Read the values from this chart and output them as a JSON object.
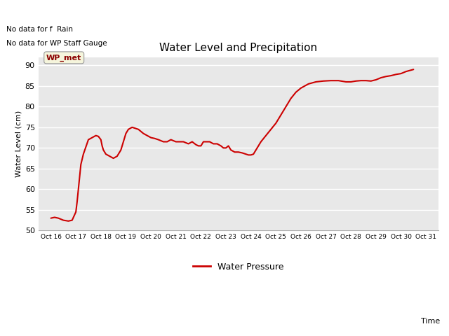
{
  "title": "Water Level and Precipitation",
  "xlabel": "Time",
  "ylabel": "Water Level (cm)",
  "ylim": [
    50,
    92
  ],
  "xlim": [
    15.5,
    31.5
  ],
  "background_color": "#e8e8e8",
  "line_color": "#cc0000",
  "line_width": 1.5,
  "legend_label": "Water Pressure",
  "wp_met_label": "WP_met",
  "no_data_text1": "No data for f  Rain",
  "no_data_text2": "No data for WP Staff Gauge",
  "x_ticks": [
    16,
    17,
    18,
    19,
    20,
    21,
    22,
    23,
    24,
    25,
    26,
    27,
    28,
    29,
    30,
    31
  ],
  "x_tick_labels": [
    "Oct 16",
    "Oct 17",
    "Oct 18",
    "Oct 19",
    "Oct 20",
    "Oct 21",
    "Oct 22",
    "Oct 23",
    "Oct 24",
    "Oct 25",
    "Oct 26",
    "Oct 27",
    "Oct 28",
    "Oct 29",
    "Oct 30",
    "Oct 31"
  ],
  "y_ticks": [
    50,
    55,
    60,
    65,
    70,
    75,
    80,
    85,
    90
  ],
  "data_x": [
    16.0,
    16.15,
    16.3,
    16.5,
    16.7,
    16.85,
    17.0,
    17.05,
    17.1,
    17.15,
    17.2,
    17.3,
    17.5,
    17.65,
    17.8,
    17.9,
    18.0,
    18.05,
    18.1,
    18.2,
    18.35,
    18.5,
    18.65,
    18.8,
    18.9,
    19.0,
    19.1,
    19.25,
    19.5,
    19.7,
    19.85,
    20.0,
    20.15,
    20.3,
    20.5,
    20.65,
    20.8,
    21.0,
    21.15,
    21.3,
    21.5,
    21.65,
    21.8,
    21.9,
    22.0,
    22.1,
    22.2,
    22.35,
    22.5,
    22.65,
    22.8,
    22.9,
    23.0,
    23.1,
    23.2,
    23.35,
    23.5,
    23.65,
    23.8,
    23.9,
    24.0,
    24.1,
    24.2,
    24.4,
    24.6,
    24.8,
    25.0,
    25.2,
    25.4,
    25.6,
    25.8,
    26.0,
    26.3,
    26.6,
    26.9,
    27.2,
    27.5,
    27.8,
    28.0,
    28.2,
    28.4,
    28.6,
    28.8,
    29.0,
    29.2,
    29.4,
    29.6,
    29.8,
    30.0,
    30.2,
    30.5
  ],
  "data_y": [
    53.0,
    53.2,
    53.0,
    52.5,
    52.3,
    52.5,
    54.5,
    57.0,
    60.0,
    63.0,
    66.0,
    68.5,
    72.0,
    72.5,
    73.0,
    72.8,
    72.0,
    70.5,
    69.5,
    68.5,
    68.0,
    67.5,
    68.0,
    69.5,
    71.5,
    73.5,
    74.5,
    75.0,
    74.5,
    73.5,
    73.0,
    72.5,
    72.3,
    72.0,
    71.5,
    71.5,
    72.0,
    71.5,
    71.5,
    71.5,
    71.0,
    71.5,
    70.8,
    70.5,
    70.5,
    71.5,
    71.5,
    71.5,
    71.0,
    71.0,
    70.5,
    70.0,
    70.0,
    70.5,
    69.5,
    69.0,
    69.0,
    68.8,
    68.5,
    68.3,
    68.3,
    68.5,
    69.5,
    71.5,
    73.0,
    74.5,
    76.0,
    78.0,
    80.0,
    82.0,
    83.5,
    84.5,
    85.5,
    86.0,
    86.2,
    86.3,
    86.3,
    86.0,
    86.0,
    86.2,
    86.3,
    86.3,
    86.2,
    86.5,
    87.0,
    87.3,
    87.5,
    87.8,
    88.0,
    88.5,
    89.0
  ]
}
